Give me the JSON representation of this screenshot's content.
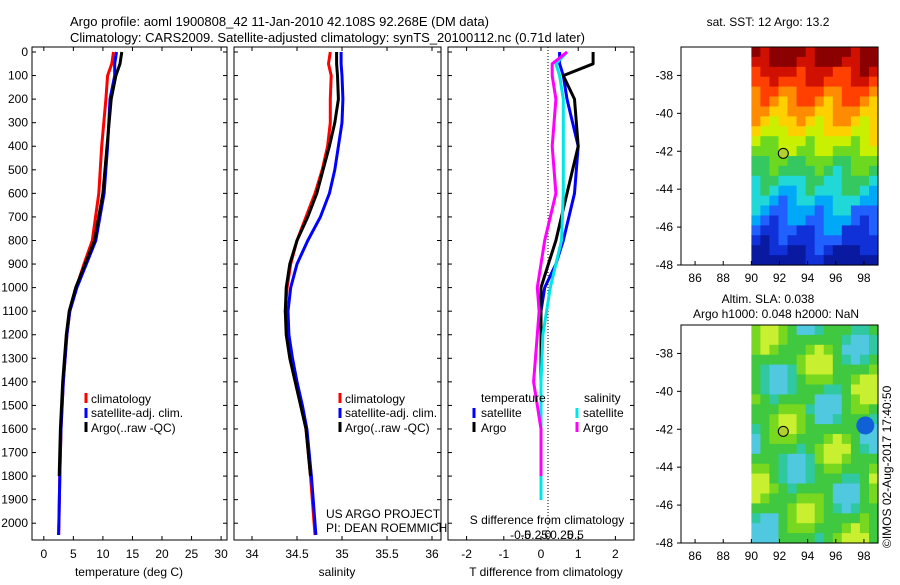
{
  "title": {
    "line1": "Argo profile: aoml 1900808_42 11-Jan-2010 42.108S 92.268E (DM data)",
    "line2": "Climatology: CARS2009. Satellite-adjusted climatology: synTS_20100112.nc (0.71d later)"
  },
  "depth_ticks": [
    "0",
    "100",
    "200",
    "300",
    "400",
    "500",
    "600",
    "700",
    "800",
    "900",
    "1000",
    "1100",
    "1200",
    "1300",
    "1400",
    "1500",
    "1600",
    "1700",
    "1800",
    "1900",
    "2000"
  ],
  "colors": {
    "climatology": "#ff0000",
    "satellite": "#0000ff",
    "argo": "#000000",
    "salinity_satellite": "#00e5e5",
    "salinity_argo": "#ff00ff"
  },
  "legend": {
    "climatology": "climatology",
    "satellite": "satellite-adj. clim.",
    "argo": "Argo(..raw -QC)"
  },
  "credit": {
    "line1": "US ARGO PROJECT",
    "line2": "PI: DEAN ROEMMICH"
  },
  "diff_legend": {
    "temperature": "temperature",
    "salinity": "salinity",
    "satellite": "satellite",
    "argo": "Argo"
  },
  "map_top_title": "sat. SST: 12 Argo: 13.2",
  "map_bottom_title1": "Altim. SLA: 0.038",
  "map_bottom_title2": "Argo h1000: 0.048 h2000: NaN",
  "map_lat_ticks": [
    "-38",
    "-40",
    "-42",
    "-44",
    "-46",
    "-48"
  ],
  "map_lon_ticks": [
    "86",
    "88",
    "90",
    "92",
    "94",
    "96",
    "98"
  ],
  "watermark": "©IMOS 02-Aug-2017 17:40:50",
  "chart_data": [
    {
      "type": "line",
      "name": "temperature",
      "xlabel": "temperature (deg C)",
      "ylabel": "depth",
      "xlim": [
        -2,
        31
      ],
      "ylim": [
        2050,
        0
      ],
      "xticks": [
        "0",
        "5",
        "10",
        "15",
        "20",
        "25",
        "30"
      ],
      "depth": [
        0,
        50,
        100,
        200,
        400,
        600,
        800,
        900,
        1000,
        1100,
        1200,
        1400,
        1600,
        1800,
        2000,
        2050
      ],
      "series": [
        {
          "name": "climatology",
          "values": [
            11.8,
            11.5,
            10.8,
            10.5,
            9.8,
            9.3,
            8.2,
            6.8,
            5.5,
            4.4,
            3.9,
            3.3,
            2.9,
            2.7,
            2.55,
            2.5
          ]
        },
        {
          "name": "satellite-adj. clim.",
          "values": [
            12.3,
            12.0,
            12.0,
            11.2,
            10.8,
            10.2,
            8.8,
            7.2,
            5.6,
            4.4,
            3.9,
            3.3,
            2.9,
            2.7,
            2.55,
            2.5
          ]
        },
        {
          "name": "Argo(..raw -QC)",
          "values": [
            13.2,
            12.9,
            12.2,
            11.4,
            10.7,
            10.0,
            8.6,
            7.0,
            5.4,
            4.3,
            3.8,
            3.2,
            2.8,
            2.6
          ]
        }
      ]
    },
    {
      "type": "line",
      "name": "salinity",
      "xlabel": "salinity",
      "ylabel": "depth",
      "xlim": [
        33.8,
        36.1
      ],
      "ylim": [
        2050,
        0
      ],
      "xticks": [
        "34",
        "34.5",
        "35",
        "35.5",
        "36"
      ],
      "depth": [
        0,
        50,
        100,
        200,
        300,
        400,
        500,
        600,
        700,
        800,
        900,
        1000,
        1100,
        1200,
        1300,
        1400,
        1500,
        1600,
        1800,
        2000,
        2050
      ],
      "series": [
        {
          "name": "climatology",
          "values": [
            34.87,
            34.85,
            34.88,
            34.87,
            34.87,
            34.84,
            34.78,
            34.7,
            34.6,
            34.5,
            34.43,
            34.39,
            34.37,
            34.39,
            34.44,
            34.5,
            34.55,
            34.6,
            34.65,
            34.69,
            34.7
          ]
        },
        {
          "name": "satellite-adj. clim.",
          "values": [
            34.99,
            34.99,
            35.0,
            35.01,
            35.0,
            34.96,
            34.92,
            34.86,
            34.76,
            34.62,
            34.5,
            34.43,
            34.4,
            34.41,
            34.45,
            34.5,
            34.56,
            34.61,
            34.66,
            34.7,
            34.71
          ]
        },
        {
          "name": "Argo(..raw -QC)",
          "values": [
            34.94,
            34.94,
            34.95,
            34.96,
            34.92,
            34.86,
            34.79,
            34.72,
            34.62,
            34.5,
            34.42,
            34.38,
            34.37,
            34.38,
            34.42,
            34.48,
            34.54,
            34.6,
            34.65
          ]
        }
      ]
    },
    {
      "type": "line",
      "name": "difference",
      "xlabel": "T difference from climatology",
      "x2label": "S difference from climatology",
      "xlim": [
        -2.5,
        2.5
      ],
      "ylim": [
        2050,
        0
      ],
      "xticks": [
        "-2",
        "-1",
        "0",
        "1",
        "2"
      ],
      "x2ticks": [
        "-0.5",
        "-0.25",
        "0",
        "0.25",
        "0.5"
      ],
      "depth": [
        0,
        50,
        100,
        200,
        400,
        600,
        800,
        900,
        1000,
        1100,
        1200,
        1400,
        1600,
        1800,
        1900
      ],
      "series": [
        {
          "name": "temperature satellite",
          "values": [
            0.5,
            0.5,
            0.6,
            0.7,
            1.0,
            0.9,
            0.6,
            0.4,
            0.1,
            0.0,
            0.0,
            0.0,
            0.0,
            0.0,
            0.0
          ]
        },
        {
          "name": "temperature Argo",
          "values": [
            1.4,
            1.4,
            0.6,
            0.9,
            1.0,
            0.7,
            0.4,
            0.2,
            0.0,
            0.0,
            0.0,
            0.0,
            0.0,
            0.0
          ]
        },
        {
          "name": "salinity satellite",
          "values": [
            0.7,
            0.4,
            0.5,
            0.6,
            0.6,
            0.6,
            0.55,
            0.4,
            0.25,
            0.15,
            0.05,
            0.0,
            0.0,
            0.0,
            0.0
          ]
        },
        {
          "name": "salinity Argo",
          "values": [
            0.7,
            0.3,
            0.3,
            0.4,
            0.3,
            0.4,
            0.1,
            0.0,
            -0.1,
            -0.05,
            -0.1,
            -0.2,
            0.0,
            0.0
          ]
        }
      ]
    },
    {
      "type": "heatmap",
      "name": "map-sst",
      "title": "sat. SST: 12 Argo: 13.2",
      "xlim": [
        85,
        99
      ],
      "ylim": [
        -48,
        -36.5
      ],
      "marker": [
        92.27,
        -42.11
      ]
    },
    {
      "type": "heatmap",
      "name": "map-sla",
      "title": "Altim. SLA: 0.038 / Argo h1000: 0.048 h2000: NaN",
      "xlim": [
        85,
        99
      ],
      "ylim": [
        -48,
        -36.5
      ],
      "marker": [
        92.27,
        -42.11
      ]
    }
  ]
}
